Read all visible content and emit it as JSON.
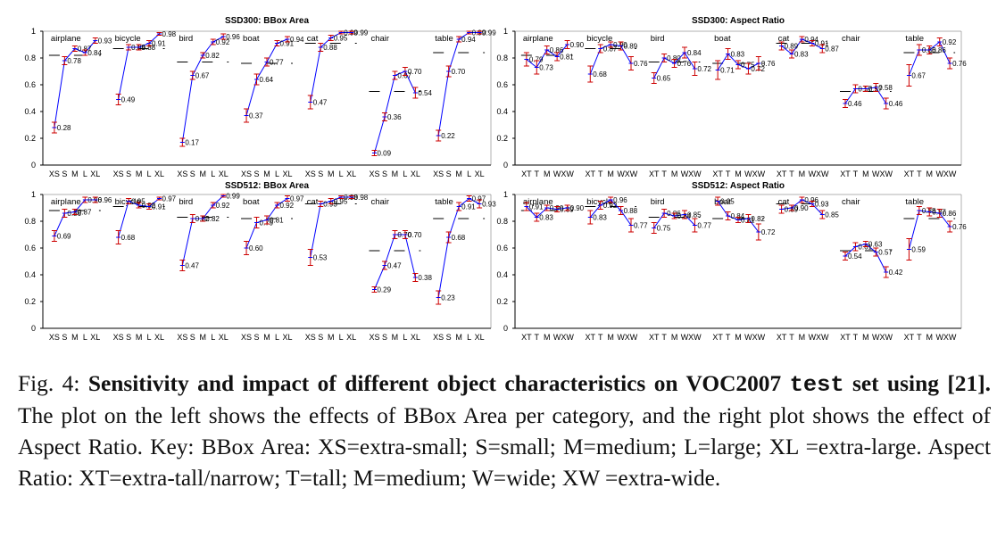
{
  "chart_data": [
    {
      "type": "line",
      "title": "SSD300: BBox Area",
      "xlabel": "",
      "ylabel": "",
      "ylim": [
        0,
        1
      ],
      "yticks": [
        "0",
        "0.2",
        "0.4",
        "0.6",
        "0.8",
        "1"
      ],
      "categories": [
        "XS",
        "S",
        "M",
        "L",
        "XL"
      ],
      "groups": [
        {
          "name": "airplane",
          "values": [
            0.28,
            0.78,
            0.87,
            0.84,
            0.93
          ],
          "labels": [
            "0.28",
            "0.78",
            "0.87",
            "0.84",
            "0.93"
          ],
          "err": [
            0.04,
            0.03,
            0.02,
            0.02,
            0.02
          ],
          "avg": 0.82
        },
        {
          "name": "bicycle",
          "values": [
            0.49,
            0.88,
            0.88,
            0.91,
            0.98
          ],
          "labels": [
            "0.49",
            "0.88",
            "0.88",
            "0.91",
            "0.98"
          ],
          "err": [
            0.04,
            0.02,
            0.02,
            0.02,
            0.01
          ],
          "avg": 0.87
        },
        {
          "name": "bird",
          "values": [
            0.17,
            0.67,
            0.82,
            0.92,
            0.96
          ],
          "labels": [
            "0.17",
            "0.67",
            "0.82",
            "0.92",
            "0.96"
          ],
          "err": [
            0.03,
            0.03,
            0.02,
            0.02,
            0.02
          ],
          "avg": 0.77
        },
        {
          "name": "boat",
          "values": [
            0.37,
            0.64,
            0.77,
            0.91,
            0.94
          ],
          "labels": [
            "0.37",
            "0.64",
            "0.77",
            "0.91",
            "0.94"
          ],
          "err": [
            0.05,
            0.04,
            0.03,
            0.02,
            0.02
          ],
          "avg": 0.76
        },
        {
          "name": "cat",
          "values": [
            0.47,
            0.88,
            0.95,
            0.99,
            0.99
          ],
          "labels": [
            "0.47",
            "0.88",
            "0.95",
            "0.99",
            "0.99"
          ],
          "err": [
            0.05,
            0.03,
            0.02,
            0.01,
            0.01
          ],
          "avg": 0.91
        },
        {
          "name": "chair",
          "values": [
            0.09,
            0.36,
            0.67,
            0.7,
            0.54
          ],
          "labels": [
            "0.09",
            "0.36",
            "0.67",
            "0.70",
            "0.54"
          ],
          "err": [
            0.02,
            0.03,
            0.03,
            0.03,
            0.04
          ],
          "avg": 0.55
        },
        {
          "name": "table",
          "values": [
            0.22,
            0.7,
            0.94,
            0.99,
            0.99
          ],
          "labels": [
            "0.22",
            "0.70",
            "0.94",
            "0.99",
            "0.99"
          ],
          "err": [
            0.04,
            0.04,
            0.02,
            0.01,
            0.01
          ],
          "avg": 0.84
        }
      ]
    },
    {
      "type": "line",
      "title": "SSD300: Aspect Ratio",
      "xlabel": "",
      "ylabel": "",
      "ylim": [
        0,
        1
      ],
      "yticks": [
        "0",
        "0.2",
        "0.4",
        "0.6",
        "0.8",
        "1"
      ],
      "categories": [
        "XT",
        "T",
        "M",
        "W",
        "XW"
      ],
      "groups": [
        {
          "name": "airplane",
          "values": [
            0.79,
            0.73,
            0.86,
            0.81,
            0.9
          ],
          "labels": [
            "0.79",
            "0.73",
            "0.86",
            "0.81",
            "0.90"
          ],
          "err": [
            0.05,
            0.05,
            0.03,
            0.03,
            0.03
          ],
          "avg": 0.82
        },
        {
          "name": "bicycle",
          "values": [
            0.68,
            0.87,
            0.9,
            0.89,
            0.76
          ],
          "labels": [
            "0.68",
            "0.87",
            "0.90",
            "0.89",
            "0.76"
          ],
          "err": [
            0.06,
            0.03,
            0.02,
            0.03,
            0.05
          ],
          "avg": 0.87
        },
        {
          "name": "bird",
          "values": [
            0.65,
            0.8,
            0.76,
            0.84,
            0.72
          ],
          "labels": [
            "0.65",
            "0.80",
            "0.76",
            "0.84",
            "0.72"
          ],
          "err": [
            0.04,
            0.03,
            0.03,
            0.04,
            0.05
          ],
          "avg": 0.77
        },
        {
          "name": "boat",
          "values": [
            0.71,
            0.83,
            0.75,
            0.72,
            0.76
          ],
          "labels": [
            "0.71",
            "0.83",
            "0.75",
            "0.72",
            "0.76"
          ],
          "err": [
            0.07,
            0.04,
            0.03,
            0.04,
            0.05
          ],
          "avg": 0.76
        },
        {
          "name": "cat",
          "values": [
            0.89,
            0.83,
            0.94,
            0.91,
            0.87
          ],
          "labels": [
            "0.89",
            "0.83",
            "0.94",
            "0.91",
            "0.87"
          ],
          "err": [
            0.03,
            0.03,
            0.02,
            0.02,
            0.03
          ],
          "avg": 0.91
        },
        {
          "name": "chair",
          "values": [
            0.46,
            0.57,
            0.57,
            0.58,
            0.46
          ],
          "labels": [
            "0.46",
            "0.57",
            "0.57",
            "0.58",
            "0.46"
          ],
          "err": [
            0.03,
            0.03,
            0.02,
            0.03,
            0.04
          ],
          "avg": 0.55
        },
        {
          "name": "table",
          "values": [
            0.67,
            0.86,
            0.86,
            0.92,
            0.76
          ],
          "labels": [
            "0.67",
            "0.86",
            "0.86",
            "0.92",
            "0.76"
          ],
          "err": [
            0.08,
            0.04,
            0.03,
            0.03,
            0.04
          ],
          "avg": 0.84
        }
      ]
    },
    {
      "type": "line",
      "title": "SSD512: BBox Area",
      "xlabel": "",
      "ylabel": "",
      "ylim": [
        0,
        1
      ],
      "yticks": [
        "0",
        "0.2",
        "0.4",
        "0.6",
        "0.8",
        "1"
      ],
      "categories": [
        "XS",
        "S",
        "M",
        "L",
        "XL"
      ],
      "groups": [
        {
          "name": "airplane",
          "values": [
            0.69,
            0.86,
            0.87,
            0.96,
            0.96
          ],
          "labels": [
            "0.69",
            "0.86",
            "0.87",
            "0.96",
            "0.96"
          ],
          "err": [
            0.04,
            0.03,
            0.02,
            0.02,
            0.02
          ],
          "avg": 0.88
        },
        {
          "name": "bicycle",
          "values": [
            0.68,
            0.95,
            0.92,
            0.91,
            0.97
          ],
          "labels": [
            "0.68",
            "0.95",
            "0.92",
            "0.91",
            "0.97"
          ],
          "err": [
            0.05,
            0.02,
            0.02,
            0.02,
            0.01
          ],
          "avg": 0.91
        },
        {
          "name": "bird",
          "values": [
            0.47,
            0.82,
            0.82,
            0.92,
            0.99
          ],
          "labels": [
            "0.47",
            "0.82",
            "0.82",
            "0.92",
            "0.99"
          ],
          "err": [
            0.04,
            0.03,
            0.02,
            0.02,
            0.01
          ],
          "avg": 0.83
        },
        {
          "name": "boat",
          "values": [
            0.6,
            0.79,
            0.81,
            0.92,
            0.97
          ],
          "labels": [
            "0.60",
            "0.79",
            "0.81",
            "0.92",
            "0.97"
          ],
          "err": [
            0.05,
            0.04,
            0.03,
            0.02,
            0.02
          ],
          "avg": 0.82
        },
        {
          "name": "cat",
          "values": [
            0.53,
            0.93,
            0.95,
            0.98,
            0.98
          ],
          "labels": [
            "0.53",
            "0.93",
            "0.95",
            "0.98",
            "0.98"
          ],
          "err": [
            0.06,
            0.02,
            0.02,
            0.01,
            0.01
          ],
          "avg": 0.93
        },
        {
          "name": "chair",
          "values": [
            0.29,
            0.47,
            0.7,
            0.7,
            0.38
          ],
          "labels": [
            "0.29",
            "0.47",
            "0.70",
            "0.70",
            "0.38"
          ],
          "err": [
            0.02,
            0.03,
            0.03,
            0.03,
            0.03
          ],
          "avg": 0.58
        },
        {
          "name": "table",
          "values": [
            0.23,
            0.68,
            0.91,
            0.97,
            0.93
          ],
          "labels": [
            "0.23",
            "0.68",
            "0.91",
            "0.97",
            "0.93"
          ],
          "err": [
            0.05,
            0.04,
            0.03,
            0.02,
            0.03
          ],
          "avg": 0.82
        }
      ]
    },
    {
      "type": "line",
      "title": "SSD512: Aspect Ratio",
      "xlabel": "",
      "ylabel": "",
      "ylim": [
        0,
        1
      ],
      "yticks": [
        "0",
        "0.2",
        "0.4",
        "0.6",
        "0.8",
        "1"
      ],
      "categories": [
        "XT",
        "T",
        "M",
        "W",
        "XW"
      ],
      "groups": [
        {
          "name": "airplane",
          "values": [
            0.91,
            0.83,
            0.9,
            0.89,
            0.9
          ],
          "labels": [
            "0.91",
            "0.83",
            "0.90",
            "0.89",
            "0.90"
          ],
          "err": [
            0.03,
            0.03,
            0.02,
            0.02,
            0.02
          ],
          "avg": 0.88
        },
        {
          "name": "bicycle",
          "values": [
            0.83,
            0.92,
            0.96,
            0.88,
            0.77
          ],
          "labels": [
            "0.83",
            "0.92",
            "0.96",
            "0.88",
            "0.77"
          ],
          "err": [
            0.05,
            0.03,
            0.02,
            0.03,
            0.05
          ],
          "avg": 0.91
        },
        {
          "name": "bird",
          "values": [
            0.75,
            0.86,
            0.84,
            0.85,
            0.77
          ],
          "labels": [
            "0.75",
            "0.86",
            "0.84",
            "0.85",
            "0.77"
          ],
          "err": [
            0.04,
            0.03,
            0.02,
            0.03,
            0.05
          ],
          "avg": 0.83
        },
        {
          "name": "boat",
          "values": [
            0.95,
            0.84,
            0.81,
            0.82,
            0.72
          ],
          "labels": [
            "0.95",
            "0.84",
            "0.81",
            "0.82",
            "0.72"
          ],
          "err": [
            0.03,
            0.03,
            0.02,
            0.03,
            0.06
          ],
          "avg": 0.82
        },
        {
          "name": "cat",
          "values": [
            0.89,
            0.9,
            0.96,
            0.93,
            0.85
          ],
          "labels": [
            "0.89",
            "0.90",
            "0.96",
            "0.93",
            "0.85"
          ],
          "err": [
            0.03,
            0.02,
            0.02,
            0.02,
            0.03
          ],
          "avg": 0.93
        },
        {
          "name": "chair",
          "values": [
            0.54,
            0.61,
            0.63,
            0.57,
            0.42
          ],
          "labels": [
            "0.54",
            "0.61",
            "0.63",
            "0.57",
            "0.42"
          ],
          "err": [
            0.03,
            0.03,
            0.02,
            0.03,
            0.04
          ],
          "avg": 0.58
        },
        {
          "name": "table",
          "values": [
            0.59,
            0.88,
            0.87,
            0.86,
            0.76
          ],
          "labels": [
            "0.59",
            "0.88",
            "0.87",
            "0.86",
            "0.76"
          ],
          "err": [
            0.08,
            0.03,
            0.03,
            0.03,
            0.04
          ],
          "avg": 0.82
        }
      ]
    }
  ],
  "colors": {
    "line": "#0000ff",
    "errorbar": "#cc0000",
    "average": "#000000",
    "axis": "#000000",
    "title": "#000000"
  },
  "caption": {
    "fig_label": "Fig. 4:",
    "bold_text": "Sensitivity and impact of different object characteristics on VOC2007",
    "bold_code": "test",
    "bold_text2": "set using [21].",
    "body": "The plot on the left shows the effects of BBox Area per category, and the right plot shows the effect of Aspect Ratio. Key: BBox Area: XS=extra-small; S=small; M=medium; L=large; XL =extra-large. Aspect Ratio: XT=extra-tall/narrow; T=tall; M=medium; W=wide; XW =extra-wide."
  }
}
